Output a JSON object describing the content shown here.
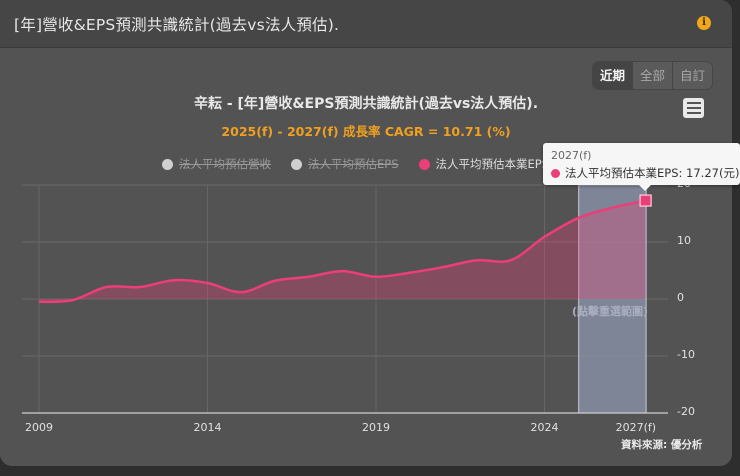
{
  "card": {
    "title": "[年]營收&EPS預測共識統計(過去vs法人預估).",
    "info_icon": "info-icon"
  },
  "range_buttons": [
    {
      "label": "近期",
      "active": true
    },
    {
      "label": "全部",
      "active": false
    },
    {
      "label": "自訂",
      "active": false
    }
  ],
  "menu_icon": "hamburger-menu-icon",
  "chart": {
    "title": "辛耘 - [年]營收&EPS預測共識統計(過去vs法人預估).",
    "subtitle": "2025(f) - 2027(f) 成長率 CAGR = 10.71 (%)",
    "legend": [
      {
        "label": "法人平均預估營收",
        "state": "hidden"
      },
      {
        "label": "法人平均預估EPS",
        "state": "hidden"
      },
      {
        "label": "法人平均預估本業EPS",
        "state": "active"
      }
    ],
    "tooltip": {
      "header": "2027(f)",
      "series": "法人平均預估本業EPS",
      "value_text": "法人平均預估本業EPS: 17.27(元)"
    },
    "reset_zoom_label": "(點擊重選範圍)",
    "source_label": "資料來源: 優分析",
    "x_ticks": [
      "2009",
      "2014",
      "2019",
      "2024",
      "2027(f)"
    ],
    "y_ticks": [
      "20",
      "10",
      "0",
      "-10",
      "-20"
    ],
    "colors": {
      "series": "#ec3e78",
      "accent": "#f0a020",
      "highlight_band": "#8c96ac",
      "background": "#535353"
    }
  },
  "chart_data": {
    "type": "area",
    "title": "辛耘 - [年]營收&EPS預測共識統計(過去vs法人預估).",
    "subtitle": "2025(f) - 2027(f) 成長率 CAGR = 10.71 (%)",
    "xlabel": "",
    "ylabel": "",
    "x": [
      "2009",
      "2010",
      "2011",
      "2012",
      "2013",
      "2014",
      "2015",
      "2016",
      "2017",
      "2018",
      "2019",
      "2020",
      "2021",
      "2022",
      "2023",
      "2024",
      "2025(f)",
      "2026(f)",
      "2027(f)"
    ],
    "series": [
      {
        "name": "法人平均預估本業EPS",
        "visible": true,
        "values": [
          -0.5,
          -0.2,
          2.1,
          2.1,
          3.3,
          2.8,
          1.2,
          3.2,
          3.9,
          4.9,
          3.9,
          4.6,
          5.6,
          6.8,
          6.8,
          10.9,
          14.2,
          16.0,
          17.27
        ]
      },
      {
        "name": "法人平均預估營收",
        "visible": false,
        "values": []
      },
      {
        "name": "法人平均預估EPS",
        "visible": false,
        "values": []
      }
    ],
    "ylim": [
      -20,
      20
    ],
    "y_ticks": [
      -20,
      -10,
      0,
      10,
      20
    ],
    "x_tick_labels": [
      "2009",
      "2014",
      "2019",
      "2024",
      "2027(f)"
    ],
    "grid": true,
    "legend_position": "top",
    "highlight_range": [
      "2025(f)",
      "2027(f)"
    ],
    "tooltip_point": {
      "x": "2027(f)",
      "value": 17.27,
      "unit": "元"
    },
    "source": "資料來源: 優分析"
  }
}
